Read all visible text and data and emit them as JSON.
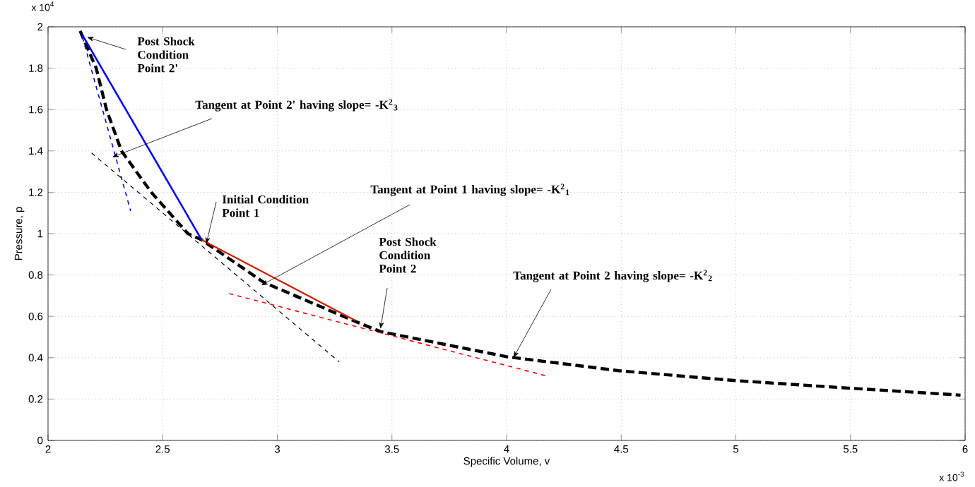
{
  "chart_data": {
    "type": "line",
    "xlabel": "Specific Volume, v",
    "ylabel": "Pressure, p",
    "xlim": [
      2,
      6
    ],
    "ylim": [
      0,
      2
    ],
    "xticks": [
      2,
      2.5,
      3,
      3.5,
      4,
      4.5,
      5,
      5.5,
      6
    ],
    "yticks": [
      0,
      0.2,
      0.4,
      0.6,
      0.8,
      1,
      1.2,
      1.4,
      1.6,
      1.8,
      2
    ],
    "grid": true,
    "marker": "none",
    "series": [
      {
        "color": "#000000",
        "line_style": "dashed",
        "x": [
          2.14,
          2.21,
          2.255,
          2.32,
          2.45,
          2.61,
          2.67,
          2.94,
          3.33,
          3.45,
          4.0,
          4.49,
          4.99,
          5.49,
          5.98
        ],
        "values": [
          1.98,
          1.8,
          1.6,
          1.4,
          1.2,
          1.0,
          0.97,
          0.765,
          0.58,
          0.526,
          0.405,
          0.337,
          0.29,
          0.253,
          0.219
        ]
      },
      {
        "color": "#0000ff",
        "line_style": "solid",
        "x": [
          2.15,
          2.67
        ],
        "values": [
          1.96,
          0.97
        ]
      },
      {
        "color": "#0000ff",
        "line_style": "dashed",
        "x": [
          2.15,
          2.36
        ],
        "values": [
          1.95,
          1.11
        ]
      },
      {
        "color": "#000000",
        "line_style": "dashed",
        "x": [
          2.19,
          3.27
        ],
        "values": [
          1.39,
          0.38
        ]
      },
      {
        "color": "#cc2200",
        "line_style": "solid",
        "x": [
          2.67,
          3.34
        ],
        "values": [
          0.97,
          0.58
        ]
      },
      {
        "color": "#ff0000",
        "line_style": "dashed",
        "x": [
          2.79,
          4.18
        ],
        "values": [
          0.71,
          0.31
        ]
      }
    ],
    "annotations": [
      {
        "text": "Post Shock Condition Point 2'",
        "x": 2.17,
        "y": 1.95
      },
      {
        "text": "Tangent at Point 2' having slope= -K$^{2}$$_{3}$",
        "x": 2.28,
        "y": 1.37
      },
      {
        "text": "Initial Condition Point 1",
        "x": 2.69,
        "y": 0.95
      },
      {
        "text": "Tangent at Point 1 having slope= -K$^{2}$$_{1}$",
        "x": 2.93,
        "y": 0.75
      },
      {
        "text": "Post Shock Condition Point 2",
        "x": 3.45,
        "y": 0.54
      },
      {
        "text": "Tangent at Point 2 having slope= -K$^{2}$$_{2}$",
        "x": 4.03,
        "y": 0.4
      },
      "x 10$^{4}$",
      "x 10$^{-3}$"
    ]
  }
}
